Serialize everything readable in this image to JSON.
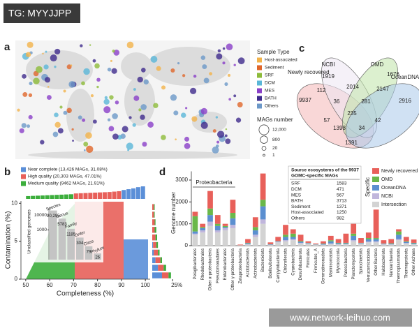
{
  "watermark_top": "TG: MYYJJPP",
  "watermark_bottom": "www.network-leihuo.com",
  "panel_a": {
    "label": "a",
    "legend_title": "Sample Type",
    "sample_types": [
      {
        "name": "Host-associated",
        "color": "#f2b34a"
      },
      {
        "name": "Sediment",
        "color": "#e0662a"
      },
      {
        "name": "SRF",
        "color": "#8dbb3a"
      },
      {
        "name": "DCM",
        "color": "#5ab7d8"
      },
      {
        "name": "MES",
        "color": "#8a3fc8"
      },
      {
        "name": "BATH",
        "color": "#3e2a8c"
      },
      {
        "name": "Others",
        "color": "#6c98c8"
      }
    ],
    "size_title": "MAGs number",
    "sizes": [
      {
        "value": 12000,
        "label": "12,000"
      },
      800,
      20,
      1
    ]
  },
  "panel_c": {
    "label": "c",
    "sets": [
      {
        "name": "Newly recovered",
        "color": "#f4b6b6"
      },
      {
        "name": "NCBI",
        "color": "#ece6f2"
      },
      {
        "name": "OMD",
        "color": "#bfe3a8"
      },
      {
        "name": "OceanDNA",
        "color": "#a9c9ea"
      }
    ],
    "counts": [
      9937,
      1919,
      1676,
      2916,
      112,
      2014,
      2147,
      36,
      281,
      235,
      57,
      1398,
      34,
      42,
      1391
    ]
  },
  "chart_data": [
    {
      "type": "scatter",
      "label": "b",
      "x_label": "Completeness (%)",
      "y_label": "Contamination (%)",
      "xlim": [
        48,
        102
      ],
      "xticks": [
        50,
        60,
        70,
        80,
        90,
        100
      ],
      "ylim": [
        0,
        10.3
      ],
      "yticks": [
        0,
        5,
        10
      ],
      "series": [
        {
          "name": "Near complete (13,426 MAGs, 31.08%)",
          "color": "#5b8fd8"
        },
        {
          "name": "High quality (20,303 MAGs, 47.01%)",
          "color": "#e8605a"
        },
        {
          "name": "Medium quality (9462 MAGs, 21.91%)",
          "color": "#3cae3c"
        }
      ],
      "top_histogram": {
        "bins": [
          50,
          52,
          54,
          56,
          58,
          60,
          62,
          64,
          66,
          68,
          70,
          72,
          74,
          76,
          78,
          80,
          82,
          84,
          86,
          88,
          90,
          92,
          94,
          96,
          98,
          100
        ],
        "values": [
          700,
          750,
          800,
          850,
          900,
          950,
          1000,
          1050,
          1100,
          1150,
          1350,
          1400,
          1450,
          1500,
          1550,
          1600,
          1650,
          1700,
          1800,
          1900,
          2200,
          2400,
          2600,
          2900,
          3100
        ],
        "colors": [
          "#3cae3c",
          "#3cae3c",
          "#3cae3c",
          "#3cae3c",
          "#3cae3c",
          "#3cae3c",
          "#3cae3c",
          "#3cae3c",
          "#3cae3c",
          "#3cae3c",
          "#e8605a",
          "#e8605a",
          "#e8605a",
          "#e8605a",
          "#e8605a",
          "#e8605a",
          "#e8605a",
          "#e8605a",
          "#e8605a",
          "#e8605a",
          "#5b8fd8",
          "#5b8fd8",
          "#5b8fd8",
          "#5b8fd8",
          "#5b8fd8"
        ]
      },
      "right_histogram": {
        "bins": [
          0,
          1,
          2,
          3,
          4,
          5,
          6,
          7,
          8,
          9,
          10
        ],
        "xlim": [
          0,
          30
        ],
        "xticks": [
          {
            "value": 25,
            "label": "25%"
          }
        ],
        "series": [
          {
            "color": "#5b8fd8",
            "values": [
              12,
              7,
              4,
              2,
              1,
              0,
              0,
              0,
              0,
              0
            ]
          },
          {
            "color": "#e8605a",
            "values": [
              8,
              7,
              6,
              5,
              4,
              4,
              3,
              3,
              2,
              2
            ]
          },
          {
            "color": "#3cae3c",
            "values": [
              3,
              3,
              2,
              2,
              2,
              2,
              2,
              1,
              1,
              1
            ]
          }
        ]
      },
      "inset": {
        "y_label": "Unclassified genomes",
        "categories": [
          "Species",
          "Genus",
          "Family",
          "Order",
          "Class",
          "Phylum"
        ],
        "values": [
          20295,
          5783,
          1185,
          304,
          79,
          26
        ],
        "value_labels": [
          "20,295",
          "5783",
          "1185",
          "304",
          "79",
          "26"
        ],
        "log_scale": true,
        "ylim": [
          10,
          30000
        ],
        "yticks": [
          1000,
          10000
        ],
        "color": "#c4c4c4"
      }
    },
    {
      "type": "bar",
      "stacked": true,
      "label": "d",
      "y_label": "Genome number",
      "ylim": [
        0,
        3400
      ],
      "yticks": [
        0,
        1000,
        2000,
        3000
      ],
      "group_label": "Proteobacteria",
      "legend_title": "Specific",
      "categories": [
        "Pelagibacterales",
        "Rhodobacterales",
        "Other α-proteobacteria",
        "Pseudomonadales",
        "Enterobacterales",
        "Other γ-proteobacteria",
        "Zetaproteobacteria",
        "Acidobacteriota",
        "Actinobacteriota",
        "Bacteroidota",
        "Bdellovibrionota",
        "Campylobacterota",
        "Chloroflexota",
        "Cyanobacteria",
        "Desulfobacterota",
        "Firmicutes",
        "Firmicutes_A",
        "Gemmatimonadota",
        "Marinisomatota",
        "Myxococcota",
        "Patescibacteria",
        "Planctomycetota",
        "Spirochaetota",
        "Verrucomicrobiota",
        "Other Bacteria",
        "Halobacteriota",
        "Nanoarchaeota",
        "Thermoplasmatota",
        "Thermoproteota",
        "Other Archaea"
      ],
      "series": [
        {
          "name": "Intersection",
          "color": "#d3d3d3",
          "values": [
            500,
            600,
            900,
            600,
            700,
            800,
            20,
            50,
            400,
            1000,
            30,
            150,
            200,
            250,
            100,
            80,
            40,
            40,
            80,
            50,
            60,
            200,
            80,
            150,
            150,
            50,
            50,
            250,
            100,
            60
          ]
        },
        {
          "name": "NCBI",
          "color": "#c0b6dc",
          "values": [
            50,
            100,
            200,
            100,
            100,
            150,
            0,
            30,
            100,
            200,
            10,
            30,
            50,
            50,
            30,
            20,
            10,
            10,
            20,
            20,
            20,
            50,
            20,
            40,
            50,
            20,
            10,
            50,
            20,
            10
          ]
        },
        {
          "name": "OceanDNA",
          "color": "#5b8fd0",
          "values": [
            100,
            100,
            300,
            200,
            50,
            300,
            0,
            30,
            200,
            600,
            20,
            20,
            150,
            100,
            50,
            20,
            10,
            30,
            100,
            40,
            30,
            200,
            20,
            100,
            100,
            20,
            30,
            200,
            50,
            40
          ]
        },
        {
          "name": "OMD",
          "color": "#6ab84a",
          "values": [
            700,
            50,
            300,
            100,
            50,
            250,
            0,
            20,
            150,
            300,
            10,
            10,
            100,
            150,
            30,
            10,
            5,
            20,
            50,
            20,
            20,
            100,
            10,
            60,
            50,
            10,
            20,
            150,
            30,
            20
          ]
        },
        {
          "name": "Newly recovered",
          "color": "#e8605a",
          "values": [
            200,
            150,
            800,
            400,
            100,
            600,
            30,
            170,
            450,
            1200,
            80,
            190,
            450,
            200,
            290,
            70,
            35,
            100,
            200,
            170,
            420,
            450,
            220,
            250,
            1300,
            150,
            190,
            100,
            200,
            150
          ]
        }
      ],
      "table": {
        "title": "Source ecosystems of the 9937",
        "subtitle": "GOMC-specific MAGs",
        "rows": [
          [
            "SRF",
            1583
          ],
          [
            "DCM",
            471
          ],
          [
            "MES",
            567
          ],
          [
            "BATH",
            3713
          ],
          [
            "Sediment",
            1371
          ],
          [
            "Host-associated",
            1250
          ],
          [
            "Others",
            982
          ]
        ]
      }
    }
  ]
}
